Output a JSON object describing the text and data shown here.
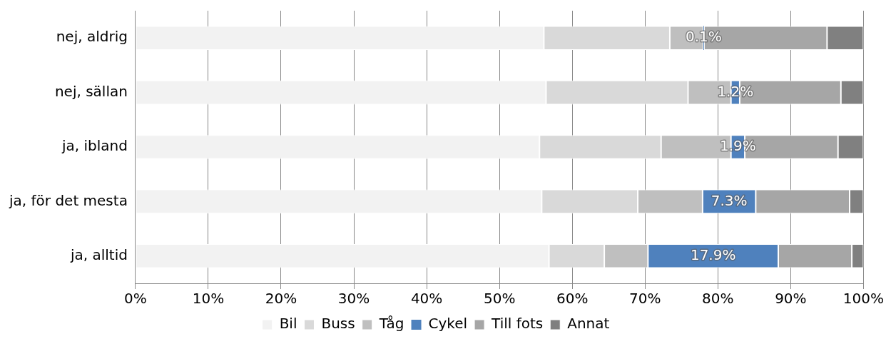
{
  "chart_data": {
    "type": "bar",
    "orientation": "horizontal",
    "stacked": true,
    "categories": [
      "nej, aldrig",
      "nej, sällan",
      "ja, ibland",
      "ja, för det mesta",
      "ja, alltid"
    ],
    "series": [
      {
        "name": "Bil",
        "color": "#f2f2f2",
        "values": [
          56.1,
          56.4,
          55.5,
          55.8,
          56.8
        ]
      },
      {
        "name": "Buss",
        "color": "#d9d9d9",
        "values": [
          17.3,
          19.5,
          16.7,
          13.2,
          7.6
        ]
      },
      {
        "name": "Tåg",
        "color": "#bfbfbf",
        "values": [
          4.6,
          5.9,
          9.6,
          8.9,
          6.0
        ]
      },
      {
        "name": "Cykel",
        "color": "#4f81bd",
        "values": [
          0.1,
          1.2,
          1.9,
          7.3,
          17.9
        ],
        "value_labels": [
          "0.1%",
          "1.2%",
          "1.9%",
          "7.3%",
          "17.9%"
        ]
      },
      {
        "name": "Till fots",
        "color": "#a6a6a6",
        "values": [
          16.9,
          13.9,
          12.8,
          12.9,
          10.1
        ]
      },
      {
        "name": "Annat",
        "color": "#808080",
        "values": [
          5.0,
          3.1,
          3.5,
          1.9,
          1.6
        ]
      }
    ],
    "xlim": [
      0,
      100
    ],
    "xticks": [
      {
        "value": 0,
        "label": "0%"
      },
      {
        "value": 10,
        "label": "10%"
      },
      {
        "value": 20,
        "label": "20%"
      },
      {
        "value": 30,
        "label": "30%"
      },
      {
        "value": 40,
        "label": "40%"
      },
      {
        "value": 50,
        "label": "50%"
      },
      {
        "value": 60,
        "label": "60%"
      },
      {
        "value": 70,
        "label": "70%"
      },
      {
        "value": 80,
        "label": "80%"
      },
      {
        "value": 90,
        "label": "90%"
      },
      {
        "value": 100,
        "label": "100%"
      }
    ],
    "grid": "x",
    "legend": "bottom"
  }
}
